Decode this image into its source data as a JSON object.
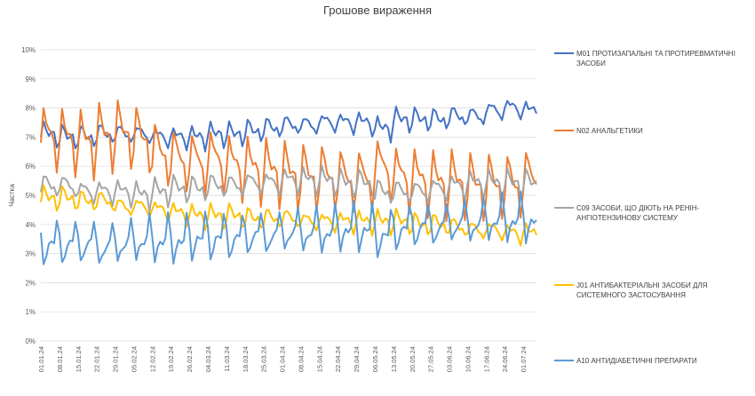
{
  "chart_data": {
    "type": "line",
    "title": "Грошове вираження",
    "xlabel": "",
    "ylabel": "Частка",
    "ylim": [
      0,
      10
    ],
    "y_ticks": [
      "0%",
      "1%",
      "2%",
      "3%",
      "4%",
      "5%",
      "6%",
      "7%",
      "8%",
      "9%",
      "10%"
    ],
    "x_tick_labels": [
      "01.01.24",
      "08.01.24",
      "15.01.24",
      "22.01.24",
      "29.01.24",
      "05.02.24",
      "12.02.24",
      "19.02.24",
      "26.02.24",
      "04.03.24",
      "11.03.24",
      "18.03.24",
      "25.03.24",
      "01.04.24",
      "08.04.24",
      "15.04.24",
      "22.04.24",
      "29.04.24",
      "06.05.24",
      "13.05.24",
      "20.05.24",
      "27.05.24",
      "03.06.24",
      "10.06.24",
      "17.06.24",
      "24.06.24",
      "01.07.24"
    ],
    "grid": true,
    "legend": "right",
    "x_days": 188,
    "series": [
      {
        "name": "M01 ПРОТИЗАПАЛЬНІ ТА ПРОТИРЕВМАТИЧНІ ЗАСОБИ",
        "color": "#4472C4",
        "weekly": [
          7.0,
          6.9,
          6.9,
          7.0,
          7.0,
          7.0,
          6.9,
          6.9,
          6.9,
          7.0,
          7.0,
          7.1,
          7.2,
          7.3,
          7.3,
          7.4,
          7.4,
          7.4,
          7.2,
          7.5,
          7.5,
          7.5,
          7.6,
          7.6,
          7.8,
          7.9,
          7.8
        ],
        "peak": 0.5
      },
      {
        "name": "N02 АНАЛЬГЕТИКИ",
        "color": "#ED7D31",
        "weekly": [
          6.7,
          6.6,
          6.5,
          6.7,
          6.8,
          6.6,
          6.1,
          5.9,
          5.8,
          5.9,
          5.7,
          5.6,
          5.5,
          5.4,
          5.3,
          5.3,
          5.2,
          5.2,
          5.6,
          5.3,
          5.2,
          5.1,
          5.1,
          5.0,
          5.0,
          5.0,
          5.2
        ],
        "peak": 1.6
      },
      {
        "name": "C09 ЗАСОБИ, ЩО ДІЮТЬ НА РЕНІН-АНГІОТЕНЗИНОВУ СИСТЕМУ",
        "color": "#A5A5A5",
        "weekly": [
          5.2,
          5.2,
          5.0,
          5.0,
          5.0,
          4.9,
          5.0,
          5.1,
          5.1,
          5.2,
          5.2,
          5.3,
          5.3,
          5.4,
          5.4,
          5.4,
          5.3,
          5.3,
          5.0,
          5.0,
          5.0,
          5.1,
          5.2,
          5.3,
          5.3,
          5.3,
          5.3
        ],
        "peak": 0.6
      },
      {
        "name": "J01 АНТИБАКТЕРІАЛЬНІ ЗАСОБИ ДЛЯ СИСТЕМНОГО ЗАСТОСУВАННЯ",
        "color": "#FFC000",
        "weekly": [
          4.8,
          4.8,
          4.7,
          4.7,
          4.5,
          4.5,
          4.4,
          4.3,
          4.2,
          4.2,
          4.2,
          4.1,
          4.1,
          4.1,
          4.0,
          4.0,
          4.0,
          4.0,
          4.0,
          4.0,
          3.9,
          3.9,
          3.8,
          3.7,
          3.7,
          3.6,
          3.6
        ],
        "peak": 0.5
      },
      {
        "name": "A10 АНТИДІАБЕТИЧНІ ПРЕПАРАТИ",
        "color": "#5B9BD5",
        "weekly": [
          3.6,
          3.6,
          3.6,
          3.5,
          3.6,
          3.7,
          3.7,
          3.7,
          3.8,
          3.8,
          3.8,
          3.9,
          3.9,
          4.0,
          4.0,
          4.0,
          4.1,
          4.1,
          3.9,
          4.1,
          4.2,
          4.2,
          4.3,
          4.3,
          4.4,
          4.4,
          4.4
        ],
        "peak": -1.1
      }
    ]
  }
}
